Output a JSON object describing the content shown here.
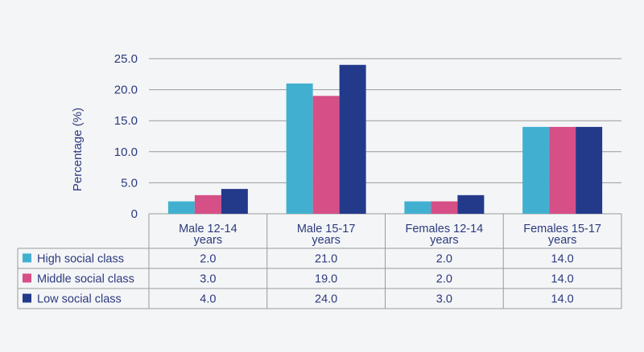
{
  "chart_data": {
    "type": "bar",
    "ylabel": "Percentage (%)",
    "ylim": [
      0,
      25
    ],
    "yticks": [
      "0",
      "5.0",
      "10.0",
      "15.0",
      "20.0",
      "25.0"
    ],
    "ytick_values": [
      0,
      5,
      10,
      15,
      20,
      25
    ],
    "grid": true,
    "categories": [
      [
        "Male 12-14",
        "years"
      ],
      [
        "Male 15-17",
        "years"
      ],
      [
        "Females 12-14",
        "years"
      ],
      [
        "Females 15-17",
        "years"
      ]
    ],
    "series": [
      {
        "name": "High social class",
        "color": "#41b0d0",
        "values": [
          2.0,
          21.0,
          2.0,
          14.0
        ],
        "labels": [
          "2.0",
          "21.0",
          "2.0",
          "14.0"
        ]
      },
      {
        "name": "Middle social class",
        "color": "#d64f86",
        "values": [
          3.0,
          19.0,
          2.0,
          14.0
        ],
        "labels": [
          "3.0",
          "19.0",
          "2.0",
          "14.0"
        ]
      },
      {
        "name": "Low social class",
        "color": "#233a8b",
        "values": [
          4.0,
          24.0,
          3.0,
          14.0
        ],
        "labels": [
          "4.0",
          "24.0",
          "3.0",
          "14.0"
        ]
      }
    ],
    "legend": "data-table"
  }
}
